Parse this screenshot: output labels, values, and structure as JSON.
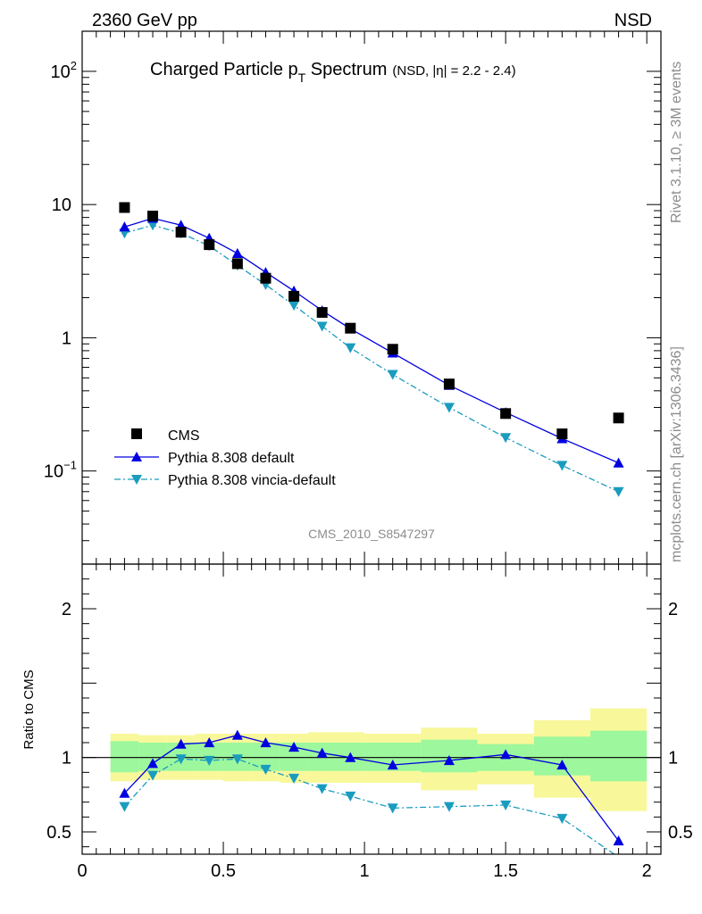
{
  "header": {
    "energy_label": "2360 GeV pp",
    "process_label": "NSD",
    "side_rivet": "Rivet 3.1.10, ≥ 3M events",
    "side_mcplots": "mcplots.cern.ch [arXiv:1306.3436]",
    "analysis_id": "CMS_2010_S8547297"
  },
  "title": {
    "main": "Charged Particle p",
    "sub": "T",
    "main2": " Spectrum",
    "detail": "(NSD, |η| = 2.2 - 2.4)"
  },
  "ratio_ylabel": "Ratio to CMS",
  "legend": [
    "CMS",
    "Pythia 8.308 default",
    "Pythia 8.308 vincia-default"
  ],
  "colors": {
    "data": "#000000",
    "default": "#0000e0",
    "vincia": "#1a9cbf",
    "band_inner": "#9df79d",
    "band_outer": "#f8f89a"
  },
  "chart_data": [
    {
      "type": "scatter",
      "panel": "main",
      "yscale": "log",
      "ylim": [
        0.02,
        200
      ],
      "xlim": [
        0,
        2.05
      ],
      "ytick_labels": [
        "10^-1",
        "1",
        "10",
        "10^2"
      ],
      "x": [
        0.15,
        0.25,
        0.35,
        0.45,
        0.55,
        0.65,
        0.75,
        0.85,
        0.95,
        1.1,
        1.3,
        1.5,
        1.7,
        1.9
      ],
      "series": [
        {
          "name": "CMS",
          "values": [
            9.5,
            8.2,
            6.2,
            5.0,
            3.6,
            2.8,
            2.05,
            1.55,
            1.18,
            0.82,
            0.45,
            0.27,
            0.19,
            0.25
          ]
        },
        {
          "name": "Pythia 8.308 default",
          "values": [
            6.8,
            7.9,
            7.0,
            5.6,
            4.3,
            3.1,
            2.25,
            1.6,
            1.17,
            0.77,
            0.44,
            0.275,
            0.175,
            0.115
          ]
        },
        {
          "name": "Pythia 8.308 vincia-default",
          "values": [
            6.1,
            7.0,
            6.1,
            4.9,
            3.5,
            2.5,
            1.75,
            1.22,
            0.84,
            0.53,
            0.3,
            0.178,
            0.11,
            0.07
          ]
        }
      ]
    },
    {
      "type": "line",
      "panel": "ratio",
      "ylim": [
        0.35,
        2.3
      ],
      "xlim": [
        0,
        2.05
      ],
      "ytick_labels": [
        "0.5",
        "1",
        "2"
      ],
      "xtick_labels": [
        "0",
        "0.5",
        "1",
        "1.5",
        "2"
      ],
      "xlabel": "",
      "ylabel": "Ratio to CMS",
      "bands": [
        {
          "x0": 0.1,
          "x1": 0.2,
          "inner": [
            0.9,
            1.11
          ],
          "outer": [
            0.84,
            1.16
          ]
        },
        {
          "x0": 0.2,
          "x1": 0.3,
          "inner": [
            0.91,
            1.1
          ],
          "outer": [
            0.85,
            1.15
          ]
        },
        {
          "x0": 0.3,
          "x1": 0.4,
          "inner": [
            0.91,
            1.1
          ],
          "outer": [
            0.85,
            1.15
          ]
        },
        {
          "x0": 0.4,
          "x1": 0.5,
          "inner": [
            0.91,
            1.1
          ],
          "outer": [
            0.85,
            1.16
          ]
        },
        {
          "x0": 0.5,
          "x1": 0.6,
          "inner": [
            0.91,
            1.1
          ],
          "outer": [
            0.84,
            1.16
          ]
        },
        {
          "x0": 0.6,
          "x1": 0.7,
          "inner": [
            0.91,
            1.1
          ],
          "outer": [
            0.84,
            1.16
          ]
        },
        {
          "x0": 0.7,
          "x1": 0.8,
          "inner": [
            0.91,
            1.1
          ],
          "outer": [
            0.83,
            1.16
          ]
        },
        {
          "x0": 0.8,
          "x1": 0.9,
          "inner": [
            0.91,
            1.1
          ],
          "outer": [
            0.83,
            1.17
          ]
        },
        {
          "x0": 0.9,
          "x1": 1.0,
          "inner": [
            0.91,
            1.1
          ],
          "outer": [
            0.83,
            1.17
          ]
        },
        {
          "x0": 1.0,
          "x1": 1.2,
          "inner": [
            0.91,
            1.1
          ],
          "outer": [
            0.83,
            1.16
          ]
        },
        {
          "x0": 1.2,
          "x1": 1.4,
          "inner": [
            0.9,
            1.12
          ],
          "outer": [
            0.78,
            1.2
          ]
        },
        {
          "x0": 1.4,
          "x1": 1.6,
          "inner": [
            0.91,
            1.09
          ],
          "outer": [
            0.82,
            1.16
          ]
        },
        {
          "x0": 1.6,
          "x1": 1.8,
          "inner": [
            0.88,
            1.14
          ],
          "outer": [
            0.73,
            1.25
          ]
        },
        {
          "x0": 1.8,
          "x1": 2.0,
          "inner": [
            0.84,
            1.18
          ],
          "outer": [
            0.64,
            1.33
          ]
        }
      ],
      "x": [
        0.15,
        0.25,
        0.35,
        0.45,
        0.55,
        0.65,
        0.75,
        0.85,
        0.95,
        1.1,
        1.3,
        1.5,
        1.7,
        1.9
      ],
      "series": [
        {
          "name": "Pythia 8.308 default",
          "values": [
            0.76,
            0.96,
            1.09,
            1.1,
            1.15,
            1.1,
            1.07,
            1.03,
            1.0,
            0.95,
            0.98,
            1.02,
            0.95,
            0.44
          ]
        },
        {
          "name": "Pythia 8.308 vincia-default",
          "values": [
            0.67,
            0.88,
            0.99,
            0.98,
            0.99,
            0.92,
            0.86,
            0.79,
            0.74,
            0.66,
            0.67,
            0.68,
            0.59,
            0.33
          ]
        }
      ]
    }
  ]
}
